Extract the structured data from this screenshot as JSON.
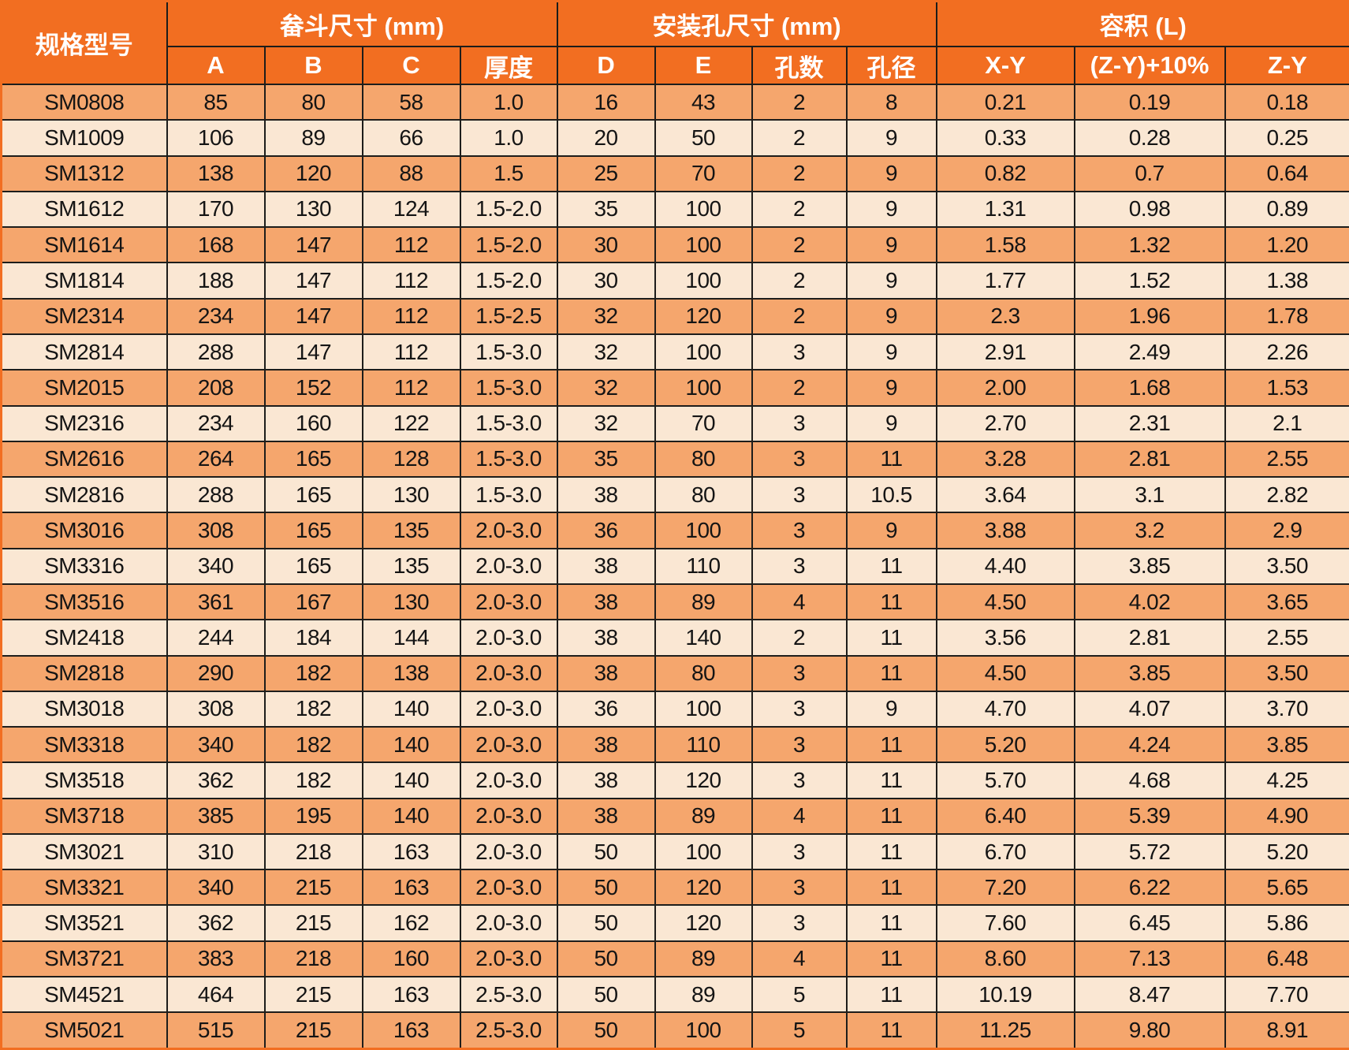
{
  "header": {
    "model": "规格型号",
    "groups": [
      {
        "label": "畚斗尺寸 (mm)",
        "cols": [
          "A",
          "B",
          "C",
          "厚度"
        ]
      },
      {
        "label": "安装孔尺寸 (mm)",
        "cols": [
          "D",
          "E",
          "孔数",
          "孔径"
        ]
      },
      {
        "label": "容积 (L)",
        "cols": [
          "X-Y",
          "(Z-Y)+10%",
          "Z-Y"
        ]
      }
    ]
  },
  "rows": [
    [
      "SM0808",
      "85",
      "80",
      "58",
      "1.0",
      "16",
      "43",
      "2",
      "8",
      "0.21",
      "0.19",
      "0.18"
    ],
    [
      "SM1009",
      "106",
      "89",
      "66",
      "1.0",
      "20",
      "50",
      "2",
      "9",
      "0.33",
      "0.28",
      "0.25"
    ],
    [
      "SM1312",
      "138",
      "120",
      "88",
      "1.5",
      "25",
      "70",
      "2",
      "9",
      "0.82",
      "0.7",
      "0.64"
    ],
    [
      "SM1612",
      "170",
      "130",
      "124",
      "1.5-2.0",
      "35",
      "100",
      "2",
      "9",
      "1.31",
      "0.98",
      "0.89"
    ],
    [
      "SM1614",
      "168",
      "147",
      "112",
      "1.5-2.0",
      "30",
      "100",
      "2",
      "9",
      "1.58",
      "1.32",
      "1.20"
    ],
    [
      "SM1814",
      "188",
      "147",
      "112",
      "1.5-2.0",
      "30",
      "100",
      "2",
      "9",
      "1.77",
      "1.52",
      "1.38"
    ],
    [
      "SM2314",
      "234",
      "147",
      "112",
      "1.5-2.5",
      "32",
      "120",
      "2",
      "9",
      "2.3",
      "1.96",
      "1.78"
    ],
    [
      "SM2814",
      "288",
      "147",
      "112",
      "1.5-3.0",
      "32",
      "100",
      "3",
      "9",
      "2.91",
      "2.49",
      "2.26"
    ],
    [
      "SM2015",
      "208",
      "152",
      "112",
      "1.5-3.0",
      "32",
      "100",
      "2",
      "9",
      "2.00",
      "1.68",
      "1.53"
    ],
    [
      "SM2316",
      "234",
      "160",
      "122",
      "1.5-3.0",
      "32",
      "70",
      "3",
      "9",
      "2.70",
      "2.31",
      "2.1"
    ],
    [
      "SM2616",
      "264",
      "165",
      "128",
      "1.5-3.0",
      "35",
      "80",
      "3",
      "11",
      "3.28",
      "2.81",
      "2.55"
    ],
    [
      "SM2816",
      "288",
      "165",
      "130",
      "1.5-3.0",
      "38",
      "80",
      "3",
      "10.5",
      "3.64",
      "3.1",
      "2.82"
    ],
    [
      "SM3016",
      "308",
      "165",
      "135",
      "2.0-3.0",
      "36",
      "100",
      "3",
      "9",
      "3.88",
      "3.2",
      "2.9"
    ],
    [
      "SM3316",
      "340",
      "165",
      "135",
      "2.0-3.0",
      "38",
      "110",
      "3",
      "11",
      "4.40",
      "3.85",
      "3.50"
    ],
    [
      "SM3516",
      "361",
      "167",
      "130",
      "2.0-3.0",
      "38",
      "89",
      "4",
      "11",
      "4.50",
      "4.02",
      "3.65"
    ],
    [
      "SM2418",
      "244",
      "184",
      "144",
      "2.0-3.0",
      "38",
      "140",
      "2",
      "11",
      "3.56",
      "2.81",
      "2.55"
    ],
    [
      "SM2818",
      "290",
      "182",
      "138",
      "2.0-3.0",
      "38",
      "80",
      "3",
      "11",
      "4.50",
      "3.85",
      "3.50"
    ],
    [
      "SM3018",
      "308",
      "182",
      "140",
      "2.0-3.0",
      "36",
      "100",
      "3",
      "9",
      "4.70",
      "4.07",
      "3.70"
    ],
    [
      "SM3318",
      "340",
      "182",
      "140",
      "2.0-3.0",
      "38",
      "110",
      "3",
      "11",
      "5.20",
      "4.24",
      "3.85"
    ],
    [
      "SM3518",
      "362",
      "182",
      "140",
      "2.0-3.0",
      "38",
      "120",
      "3",
      "11",
      "5.70",
      "4.68",
      "4.25"
    ],
    [
      "SM3718",
      "385",
      "195",
      "140",
      "2.0-3.0",
      "38",
      "89",
      "4",
      "11",
      "6.40",
      "5.39",
      "4.90"
    ],
    [
      "SM3021",
      "310",
      "218",
      "163",
      "2.0-3.0",
      "50",
      "100",
      "3",
      "11",
      "6.70",
      "5.72",
      "5.20"
    ],
    [
      "SM3321",
      "340",
      "215",
      "163",
      "2.0-3.0",
      "50",
      "120",
      "3",
      "11",
      "7.20",
      "6.22",
      "5.65"
    ],
    [
      "SM3521",
      "362",
      "215",
      "162",
      "2.0-3.0",
      "50",
      "120",
      "3",
      "11",
      "7.60",
      "6.45",
      "5.86"
    ],
    [
      "SM3721",
      "383",
      "218",
      "160",
      "2.0-3.0",
      "50",
      "89",
      "4",
      "11",
      "8.60",
      "7.13",
      "6.48"
    ],
    [
      "SM4521",
      "464",
      "215",
      "163",
      "2.5-3.0",
      "50",
      "89",
      "5",
      "11",
      "10.19",
      "8.47",
      "7.70"
    ],
    [
      "SM5021",
      "515",
      "215",
      "163",
      "2.5-3.0",
      "50",
      "100",
      "5",
      "11",
      "11.25",
      "9.80",
      "8.91"
    ]
  ],
  "colors": {
    "header_bg": "#F26E21",
    "row_odd_bg": "#F5A66D",
    "row_even_bg": "#FAE7D3",
    "grid_line": "#1d1d1b",
    "outer_border": "#F26E21",
    "header_text": "#ffffff",
    "cell_text": "#141414"
  }
}
